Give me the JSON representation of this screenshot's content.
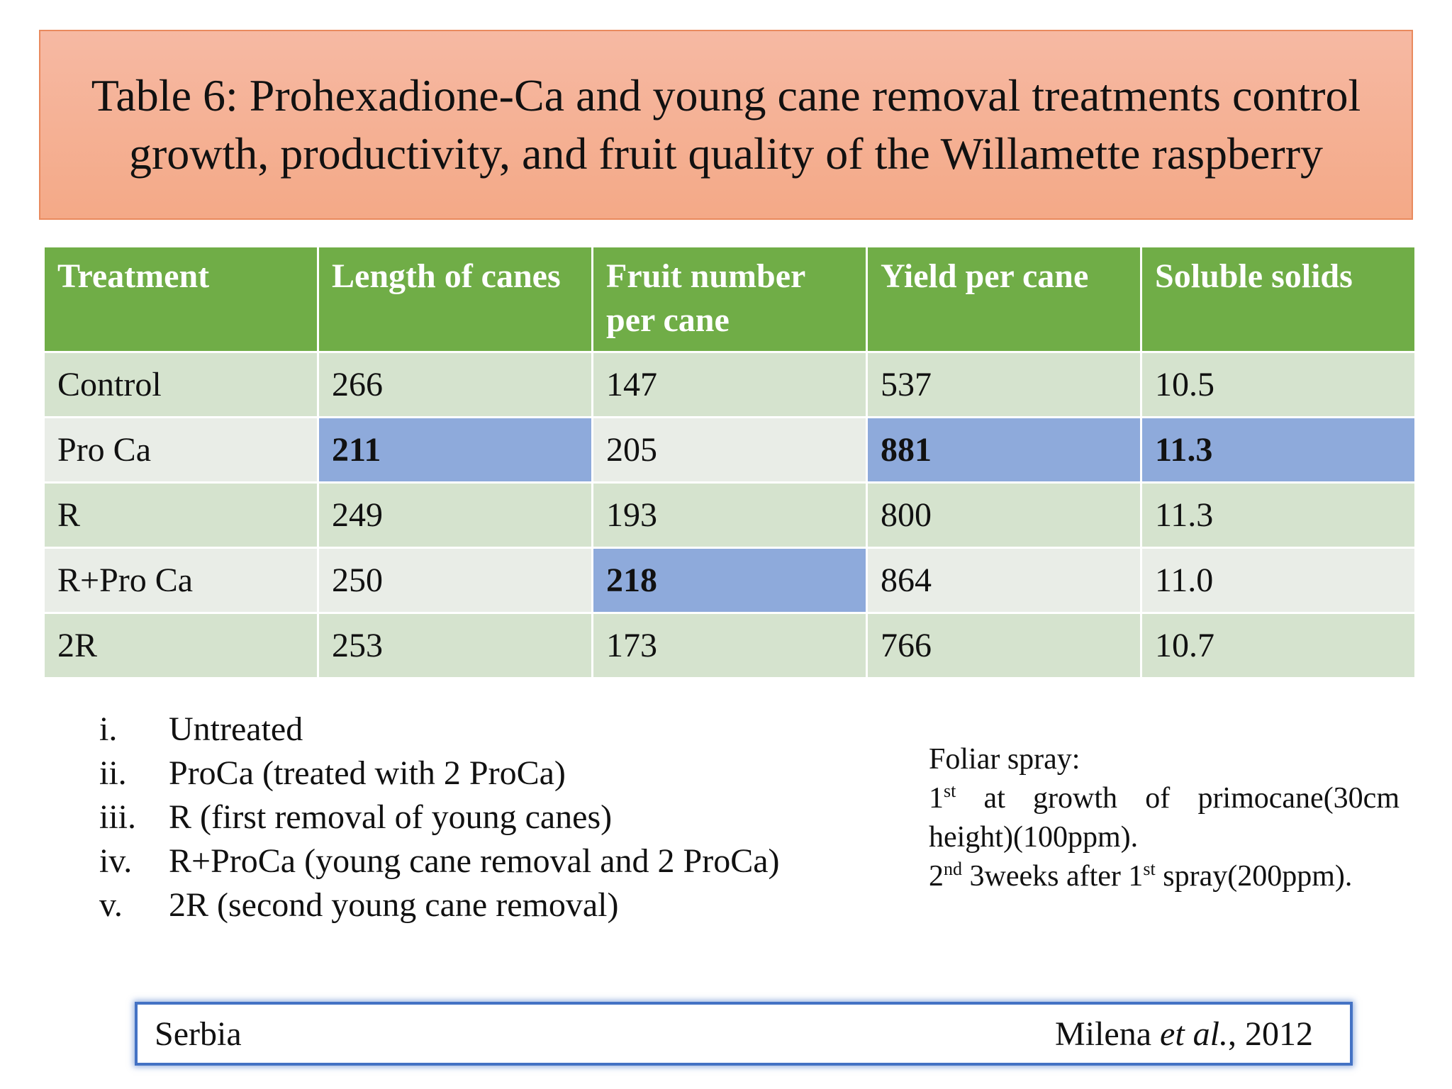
{
  "title": "Table 6: Prohexadione-Ca and young cane removal treatments control growth, productivity, and fruit quality of the Willamette raspberry",
  "table": {
    "headers": [
      "Treatment",
      "Length of canes",
      "Fruit number per cane",
      "Yield per cane",
      "Soluble solids"
    ],
    "rows": [
      [
        "Control",
        "266",
        "147",
        "537",
        "10.5"
      ],
      [
        "Pro Ca",
        "211",
        "205",
        "881",
        "11.3"
      ],
      [
        "R",
        "249",
        "193",
        "800",
        "11.3"
      ],
      [
        "R+Pro Ca",
        "250",
        "218",
        "864",
        "11.0"
      ],
      [
        "2R",
        "253",
        "173",
        "766",
        "10.7"
      ]
    ],
    "highlight_color": "#8eaadb",
    "header_color": "#70ad47"
  },
  "notes": [
    {
      "num": "i.",
      "text": "Untreated"
    },
    {
      "num": "ii.",
      "text": "ProCa (treated with 2 ProCa)"
    },
    {
      "num": "iii.",
      "text": "R (first removal of young canes)"
    },
    {
      "num": "iv.",
      "text": "R+ProCa (young cane removal and 2 ProCa)"
    },
    {
      "num": "v.",
      "text": "2R  (second young cane removal)"
    }
  ],
  "foliar": {
    "heading": "Foliar spray:",
    "first_num": "1",
    "first_sup": "st",
    "first_text": " at growth of primocane(30cm height)(100ppm).",
    "second_num": "2",
    "second_sup": "nd",
    "second_text_a": " 3weeks after 1",
    "second_sup2": "st",
    "second_text_b": " spray(200ppm)."
  },
  "footer": {
    "location": "Serbia",
    "author": "Milena",
    "etal": "et al.",
    "year": ", 2012"
  }
}
